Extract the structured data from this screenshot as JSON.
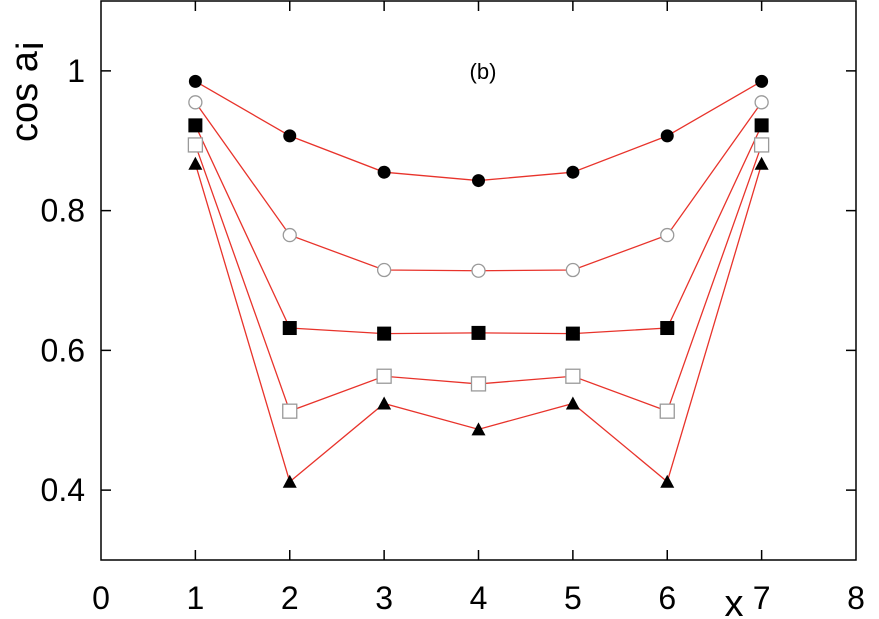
{
  "chart_data": {
    "type": "line",
    "annotation": "(b)",
    "xlabel": "x",
    "ylabel": "cos a",
    "ylabel_subscript": "i",
    "xlim": [
      0,
      8
    ],
    "ylim": [
      0.3,
      1.1
    ],
    "xticks": [
      0,
      1,
      2,
      3,
      4,
      5,
      6,
      7,
      8
    ],
    "yticks": [
      0.4,
      0.6,
      0.8,
      1
    ],
    "ytick_labels": [
      "0.4",
      "0.6",
      "0.8",
      "1"
    ],
    "grid": false,
    "line_color": "#e8332b",
    "x": [
      1,
      2,
      3,
      4,
      5,
      6,
      7
    ],
    "series": [
      {
        "marker": "filled-circle",
        "values": [
          0.985,
          0.907,
          0.855,
          0.843,
          0.855,
          0.907,
          0.985
        ]
      },
      {
        "marker": "open-circle",
        "values": [
          0.955,
          0.765,
          0.715,
          0.714,
          0.715,
          0.765,
          0.955
        ]
      },
      {
        "marker": "filled-square",
        "values": [
          0.922,
          0.632,
          0.624,
          0.625,
          0.624,
          0.632,
          0.922
        ]
      },
      {
        "marker": "open-square",
        "values": [
          0.894,
          0.513,
          0.563,
          0.552,
          0.563,
          0.513,
          0.894
        ]
      },
      {
        "marker": "filled-triangle",
        "values": [
          0.867,
          0.412,
          0.524,
          0.487,
          0.524,
          0.412,
          0.867
        ]
      }
    ]
  }
}
